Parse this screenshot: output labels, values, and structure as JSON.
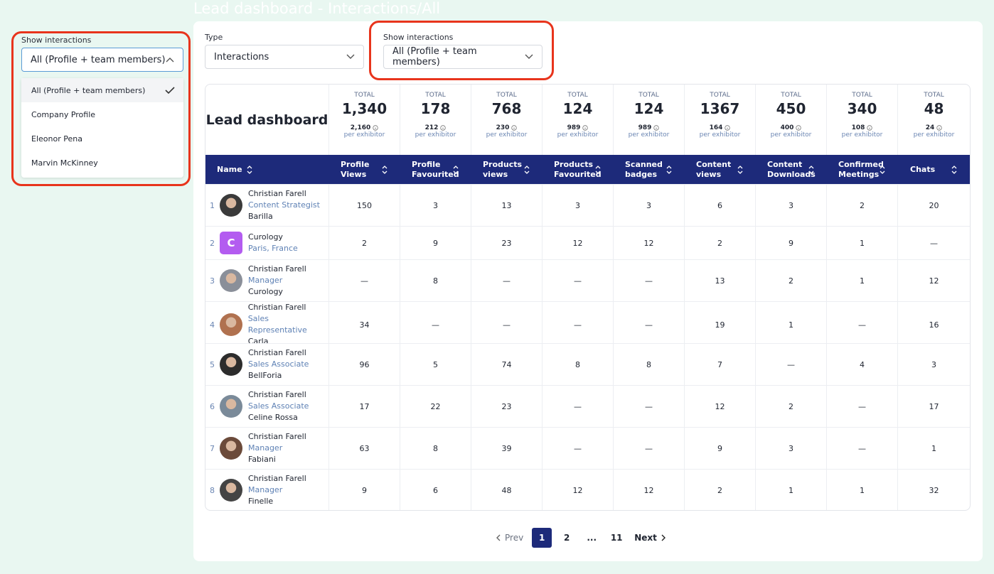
{
  "page_title": "Lead dashboard - Interactions/All",
  "left_dropdown": {
    "label": "Show interactions",
    "selected": "All (Profile + team members)",
    "options": [
      "All (Profile + team members)",
      "Company Profile",
      "Eleonor Pena",
      "Marvin McKinney"
    ]
  },
  "filters": [
    {
      "label": "Type",
      "value": "Interactions"
    },
    {
      "label": "Show interactions",
      "value": "All (Profile + team members)"
    }
  ],
  "dashboard": {
    "title": "Lead dashboard",
    "totals": [
      {
        "label": "TOTAL",
        "total": "1,340",
        "sub": "2,160",
        "per": "per exhibitor"
      },
      {
        "label": "TOTAL",
        "total": "178",
        "sub": "212",
        "per": "per exhibitor"
      },
      {
        "label": "TOTAL",
        "total": "768",
        "sub": "230",
        "per": "per exhibitor"
      },
      {
        "label": "TOTAL",
        "total": "124",
        "sub": "989",
        "per": "per exhibitor"
      },
      {
        "label": "TOTAL",
        "total": "124",
        "sub": "989",
        "per": "per exhibitor"
      },
      {
        "label": "TOTAL",
        "total": "1367",
        "sub": "164",
        "per": "per exhibitor"
      },
      {
        "label": "TOTAL",
        "total": "450",
        "sub": "400",
        "per": "per exhibitor"
      },
      {
        "label": "TOTAL",
        "total": "340",
        "sub": "108",
        "per": "per exhibitor"
      },
      {
        "label": "TOTAL",
        "total": "48",
        "sub": "24",
        "per": "per exhibitor"
      }
    ]
  },
  "table": {
    "columns": [
      "Name",
      "Profile Views",
      "Profile Favourited",
      "Products views",
      "Products Favourited",
      "Scanned badges",
      "Content views",
      "Content Downloads",
      "Confirmed Meetings",
      "Chats"
    ],
    "rows": [
      {
        "index": "1",
        "name": "Christian Farell",
        "role": "Content Strategist",
        "company": "Barilla",
        "cells": [
          150,
          3,
          13,
          3,
          3,
          6,
          3,
          2,
          20
        ]
      },
      {
        "index": "2",
        "avatar_letter": "C",
        "name": "Curology",
        "role": "Paris, France",
        "cells": [
          2,
          9,
          23,
          12,
          12,
          2,
          9,
          1,
          "—"
        ]
      },
      {
        "index": "3",
        "name": "Christian Farell",
        "role": "Manager",
        "company": "Curology",
        "cells": [
          "—",
          8,
          "—",
          "—",
          "—",
          13,
          2,
          1,
          12
        ]
      },
      {
        "index": "4",
        "name": "Christian Farell",
        "role": "Sales Representative",
        "company": "Carla",
        "cells": [
          34,
          "—",
          "—",
          "—",
          "—",
          19,
          1,
          "—",
          16
        ]
      },
      {
        "index": "5",
        "name": "Christian Farell",
        "role": "Sales Associate",
        "company": "BellForia",
        "cells": [
          96,
          5,
          74,
          8,
          8,
          7,
          "—",
          4,
          3
        ]
      },
      {
        "index": "6",
        "name": "Christian Farell",
        "role": "Sales Associate",
        "company": "Celine Rossa",
        "cells": [
          17,
          22,
          23,
          "—",
          "—",
          12,
          2,
          "—",
          17
        ]
      },
      {
        "index": "7",
        "name": "Christian Farell",
        "role": "Manager",
        "company": "Fabiani",
        "cells": [
          63,
          8,
          39,
          "—",
          "—",
          9,
          3,
          "—",
          1
        ]
      },
      {
        "index": "8",
        "name": "Christian Farell",
        "role": "Manager",
        "company": "Finelle",
        "cells": [
          9,
          6,
          48,
          12,
          12,
          2,
          1,
          1,
          32
        ]
      }
    ]
  },
  "pagination": {
    "prev": "Prev",
    "pages": [
      "1",
      "2",
      "...",
      "11"
    ],
    "current": "1",
    "next": "Next"
  }
}
